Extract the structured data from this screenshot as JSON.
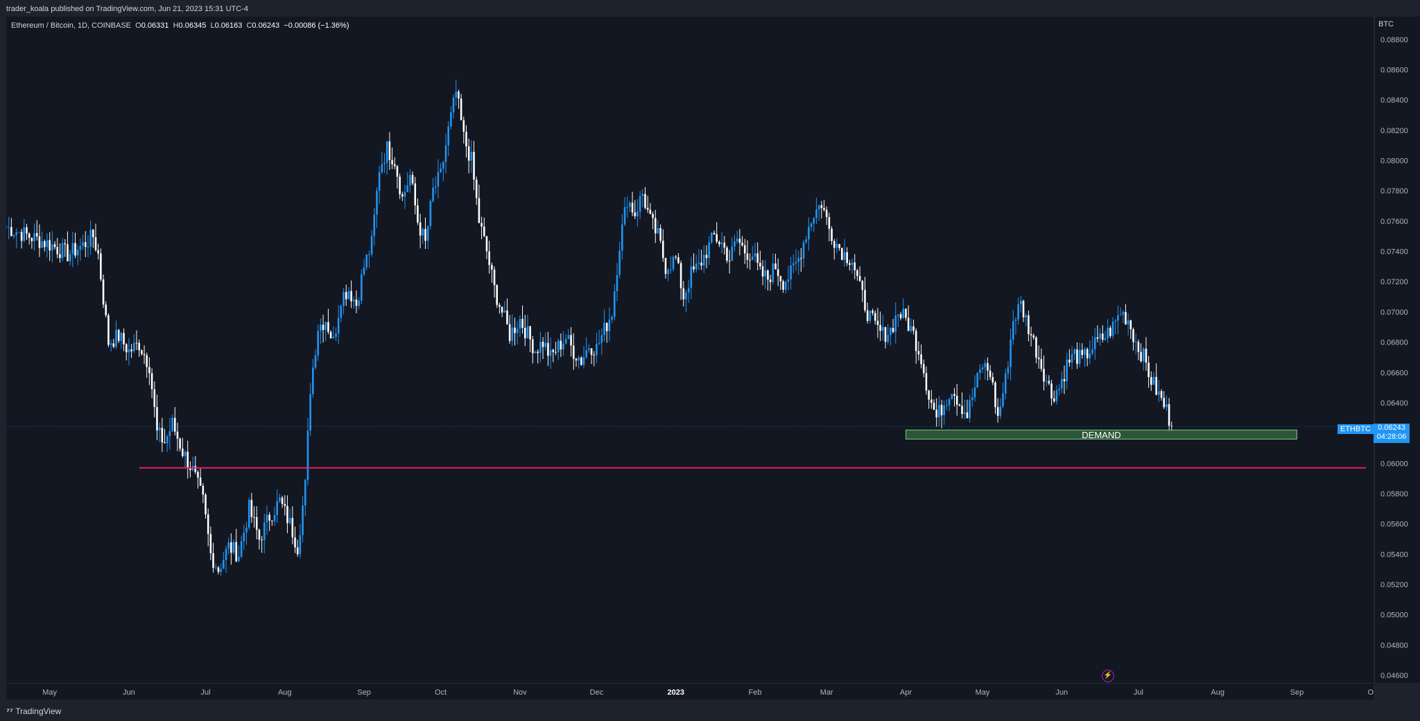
{
  "header": {
    "published": "trader_koala published on TradingView.com, Jun 21, 2023 15:31 UTC-4"
  },
  "legend": {
    "symbol": "Ethereum / Bitcoin, 1D, COINBASE",
    "o_label": "O",
    "o": "0.06331",
    "h_label": "H",
    "h": "0.06345",
    "l_label": "L",
    "l": "0.06163",
    "c_label": "C",
    "c": "0.06243",
    "change": "−0.00086 (−1.36%)"
  },
  "price_scale": {
    "unit": "BTC",
    "ticker_badge": "ETHBTC",
    "last_price": "0.06243",
    "countdown": "04:28:06"
  },
  "footer": {
    "logo_text": "TradingView"
  },
  "colors": {
    "background": "#131722",
    "up": "#2196f3",
    "down": "#ffffff",
    "support_line": "#e91e63",
    "demand_zone": "#2e5e3a"
  },
  "chart_data": {
    "type": "candlestick",
    "symbol": "ETHBTC",
    "xlabel": "",
    "ylabel": "",
    "ylim": [
      0.0455,
      0.0895
    ],
    "y_ticks": [
      "0.08800",
      "0.08600",
      "0.08400",
      "0.08200",
      "0.08000",
      "0.07800",
      "0.07600",
      "0.07400",
      "0.07200",
      "0.07000",
      "0.06800",
      "0.06600",
      "0.06400",
      "0.06200",
      "0.06000",
      "0.05800",
      "0.05600",
      "0.05400",
      "0.05200",
      "0.05000",
      "0.04800",
      "0.04600"
    ],
    "x_ticks": [
      {
        "label": "May",
        "date": "2022-05-01"
      },
      {
        "label": "Jun",
        "date": "2022-06-01"
      },
      {
        "label": "Jul",
        "date": "2022-07-01"
      },
      {
        "label": "Aug",
        "date": "2022-08-01"
      },
      {
        "label": "Sep",
        "date": "2022-09-01"
      },
      {
        "label": "Oct",
        "date": "2022-10-01"
      },
      {
        "label": "Nov",
        "date": "2022-11-01"
      },
      {
        "label": "Dec",
        "date": "2022-12-01"
      },
      {
        "label": "2023",
        "date": "2023-01-01"
      },
      {
        "label": "Feb",
        "date": "2023-02-01"
      },
      {
        "label": "Mar",
        "date": "2023-03-01"
      },
      {
        "label": "Apr",
        "date": "2023-04-01"
      },
      {
        "label": "May",
        "date": "2023-05-01"
      },
      {
        "label": "Jun",
        "date": "2023-06-01"
      },
      {
        "label": "Jul",
        "date": "2023-07-01"
      },
      {
        "label": "Aug",
        "date": "2023-08-01"
      },
      {
        "label": "Sep",
        "date": "2023-09-01"
      },
      {
        "label": "Oct",
        "date": "2023-10-01"
      }
    ],
    "x_range": [
      "2022-04-14",
      "2023-10-01"
    ],
    "closes": [
      {
        "date": "2022-04-14",
        "close": 0.0756
      },
      {
        "date": "2022-04-20",
        "close": 0.0752
      },
      {
        "date": "2022-04-26",
        "close": 0.0748
      },
      {
        "date": "2022-05-02",
        "close": 0.0744
      },
      {
        "date": "2022-05-08",
        "close": 0.0738
      },
      {
        "date": "2022-05-14",
        "close": 0.0744
      },
      {
        "date": "2022-05-18",
        "close": 0.075
      },
      {
        "date": "2022-05-20",
        "close": 0.0738
      },
      {
        "date": "2022-05-24",
        "close": 0.068
      },
      {
        "date": "2022-05-28",
        "close": 0.0684
      },
      {
        "date": "2022-06-01",
        "close": 0.0674
      },
      {
        "date": "2022-06-05",
        "close": 0.0679
      },
      {
        "date": "2022-06-09",
        "close": 0.0665
      },
      {
        "date": "2022-06-12",
        "close": 0.062
      },
      {
        "date": "2022-06-15",
        "close": 0.0614
      },
      {
        "date": "2022-06-18",
        "close": 0.0626
      },
      {
        "date": "2022-06-22",
        "close": 0.0608
      },
      {
        "date": "2022-06-26",
        "close": 0.0595
      },
      {
        "date": "2022-06-30",
        "close": 0.0575
      },
      {
        "date": "2022-07-03",
        "close": 0.054
      },
      {
        "date": "2022-07-06",
        "close": 0.053
      },
      {
        "date": "2022-07-10",
        "close": 0.0545
      },
      {
        "date": "2022-07-14",
        "close": 0.054
      },
      {
        "date": "2022-07-18",
        "close": 0.057
      },
      {
        "date": "2022-07-22",
        "close": 0.055
      },
      {
        "date": "2022-07-26",
        "close": 0.0565
      },
      {
        "date": "2022-07-30",
        "close": 0.0575
      },
      {
        "date": "2022-08-03",
        "close": 0.056
      },
      {
        "date": "2022-08-06",
        "close": 0.0545
      },
      {
        "date": "2022-08-09",
        "close": 0.0585
      },
      {
        "date": "2022-08-11",
        "close": 0.065
      },
      {
        "date": "2022-08-14",
        "close": 0.069
      },
      {
        "date": "2022-08-17",
        "close": 0.0695
      },
      {
        "date": "2022-08-20",
        "close": 0.068
      },
      {
        "date": "2022-08-23",
        "close": 0.071
      },
      {
        "date": "2022-08-26",
        "close": 0.0715
      },
      {
        "date": "2022-08-29",
        "close": 0.0705
      },
      {
        "date": "2022-09-01",
        "close": 0.073
      },
      {
        "date": "2022-09-04",
        "close": 0.0745
      },
      {
        "date": "2022-09-07",
        "close": 0.0795
      },
      {
        "date": "2022-09-10",
        "close": 0.0808
      },
      {
        "date": "2022-09-13",
        "close": 0.08
      },
      {
        "date": "2022-09-16",
        "close": 0.0775
      },
      {
        "date": "2022-09-19",
        "close": 0.079
      },
      {
        "date": "2022-09-22",
        "close": 0.076
      },
      {
        "date": "2022-09-25",
        "close": 0.0745
      },
      {
        "date": "2022-09-28",
        "close": 0.078
      },
      {
        "date": "2022-10-01",
        "close": 0.079
      },
      {
        "date": "2022-10-04",
        "close": 0.082
      },
      {
        "date": "2022-10-07",
        "close": 0.0845
      },
      {
        "date": "2022-10-10",
        "close": 0.0815
      },
      {
        "date": "2022-10-13",
        "close": 0.08
      },
      {
        "date": "2022-10-16",
        "close": 0.076
      },
      {
        "date": "2022-10-19",
        "close": 0.074
      },
      {
        "date": "2022-10-22",
        "close": 0.0715
      },
      {
        "date": "2022-10-25",
        "close": 0.07
      },
      {
        "date": "2022-10-28",
        "close": 0.0685
      },
      {
        "date": "2022-11-01",
        "close": 0.0695
      },
      {
        "date": "2022-11-04",
        "close": 0.0685
      },
      {
        "date": "2022-11-07",
        "close": 0.0675
      },
      {
        "date": "2022-11-10",
        "close": 0.068
      },
      {
        "date": "2022-11-13",
        "close": 0.067
      },
      {
        "date": "2022-11-16",
        "close": 0.0677
      },
      {
        "date": "2022-11-19",
        "close": 0.0683
      },
      {
        "date": "2022-11-22",
        "close": 0.0674
      },
      {
        "date": "2022-11-25",
        "close": 0.0668
      },
      {
        "date": "2022-11-28",
        "close": 0.0678
      },
      {
        "date": "2022-12-01",
        "close": 0.0676
      },
      {
        "date": "2022-12-04",
        "close": 0.0688
      },
      {
        "date": "2022-12-07",
        "close": 0.07
      },
      {
        "date": "2022-12-10",
        "close": 0.0745
      },
      {
        "date": "2022-12-13",
        "close": 0.0775
      },
      {
        "date": "2022-12-16",
        "close": 0.0765
      },
      {
        "date": "2022-12-19",
        "close": 0.0778
      },
      {
        "date": "2022-12-22",
        "close": 0.076
      },
      {
        "date": "2022-12-25",
        "close": 0.075
      },
      {
        "date": "2022-12-28",
        "close": 0.073
      },
      {
        "date": "2023-01-01",
        "close": 0.0735
      },
      {
        "date": "2023-01-04",
        "close": 0.071
      },
      {
        "date": "2023-01-07",
        "close": 0.0725
      },
      {
        "date": "2023-01-10",
        "close": 0.073
      },
      {
        "date": "2023-01-13",
        "close": 0.074
      },
      {
        "date": "2023-01-16",
        "close": 0.075
      },
      {
        "date": "2023-01-19",
        "close": 0.0745
      },
      {
        "date": "2023-01-22",
        "close": 0.0735
      },
      {
        "date": "2023-01-25",
        "close": 0.0748
      },
      {
        "date": "2023-01-28",
        "close": 0.074
      },
      {
        "date": "2023-01-31",
        "close": 0.0738
      },
      {
        "date": "2023-02-03",
        "close": 0.0725
      },
      {
        "date": "2023-02-06",
        "close": 0.0722
      },
      {
        "date": "2023-02-09",
        "close": 0.073
      },
      {
        "date": "2023-02-12",
        "close": 0.072
      },
      {
        "date": "2023-02-15",
        "close": 0.0725
      },
      {
        "date": "2023-02-18",
        "close": 0.0735
      },
      {
        "date": "2023-02-21",
        "close": 0.0752
      },
      {
        "date": "2023-02-24",
        "close": 0.0765
      },
      {
        "date": "2023-02-27",
        "close": 0.0772
      },
      {
        "date": "2023-03-02",
        "close": 0.0755
      },
      {
        "date": "2023-03-05",
        "close": 0.0745
      },
      {
        "date": "2023-03-08",
        "close": 0.0738
      },
      {
        "date": "2023-03-11",
        "close": 0.0735
      },
      {
        "date": "2023-03-14",
        "close": 0.0715
      },
      {
        "date": "2023-03-17",
        "close": 0.07
      },
      {
        "date": "2023-03-20",
        "close": 0.069
      },
      {
        "date": "2023-03-23",
        "close": 0.0685
      },
      {
        "date": "2023-03-26",
        "close": 0.0688
      },
      {
        "date": "2023-03-29",
        "close": 0.07
      },
      {
        "date": "2023-04-01",
        "close": 0.0695
      },
      {
        "date": "2023-04-04",
        "close": 0.0685
      },
      {
        "date": "2023-04-07",
        "close": 0.067
      },
      {
        "date": "2023-04-10",
        "close": 0.0645
      },
      {
        "date": "2023-04-13",
        "close": 0.063
      },
      {
        "date": "2023-04-16",
        "close": 0.064
      },
      {
        "date": "2023-04-19",
        "close": 0.065
      },
      {
        "date": "2023-04-22",
        "close": 0.064
      },
      {
        "date": "2023-04-25",
        "close": 0.0632
      },
      {
        "date": "2023-04-28",
        "close": 0.065
      },
      {
        "date": "2023-05-01",
        "close": 0.0665
      },
      {
        "date": "2023-05-04",
        "close": 0.066
      },
      {
        "date": "2023-05-07",
        "close": 0.063
      },
      {
        "date": "2023-05-10",
        "close": 0.0655
      },
      {
        "date": "2023-05-13",
        "close": 0.0695
      },
      {
        "date": "2023-05-16",
        "close": 0.0705
      },
      {
        "date": "2023-05-19",
        "close": 0.069
      },
      {
        "date": "2023-05-22",
        "close": 0.0675
      },
      {
        "date": "2023-05-25",
        "close": 0.066
      },
      {
        "date": "2023-05-28",
        "close": 0.0645
      },
      {
        "date": "2023-05-31",
        "close": 0.065
      },
      {
        "date": "2023-06-03",
        "close": 0.0665
      },
      {
        "date": "2023-06-06",
        "close": 0.0672
      },
      {
        "date": "2023-06-09",
        "close": 0.0668
      },
      {
        "date": "2023-06-12",
        "close": 0.0675
      },
      {
        "date": "2023-06-15",
        "close": 0.068
      },
      {
        "date": "2023-06-18",
        "close": 0.0684
      },
      {
        "date": "2023-06-21",
        "close": 0.069
      },
      {
        "date": "2023-06-24",
        "close": 0.07
      },
      {
        "date": "2023-06-27",
        "close": 0.0695
      },
      {
        "date": "2023-06-30",
        "close": 0.068
      },
      {
        "date": "2023-07-03",
        "close": 0.067
      },
      {
        "date": "2023-07-06",
        "close": 0.0655
      },
      {
        "date": "2023-07-09",
        "close": 0.0645
      },
      {
        "date": "2023-07-12",
        "close": 0.0635
      },
      {
        "date": "2023-07-14",
        "close": 0.06243
      }
    ],
    "support_line": {
      "price": 0.0597,
      "from": "2022-06-05",
      "to": "2023-09-28"
    },
    "demand_zone": {
      "label": "DEMAND",
      "price_low": 0.0616,
      "price_high": 0.0622,
      "from": "2023-04-01",
      "to": "2023-09-01"
    },
    "last_price": 0.06243,
    "grid": false
  }
}
